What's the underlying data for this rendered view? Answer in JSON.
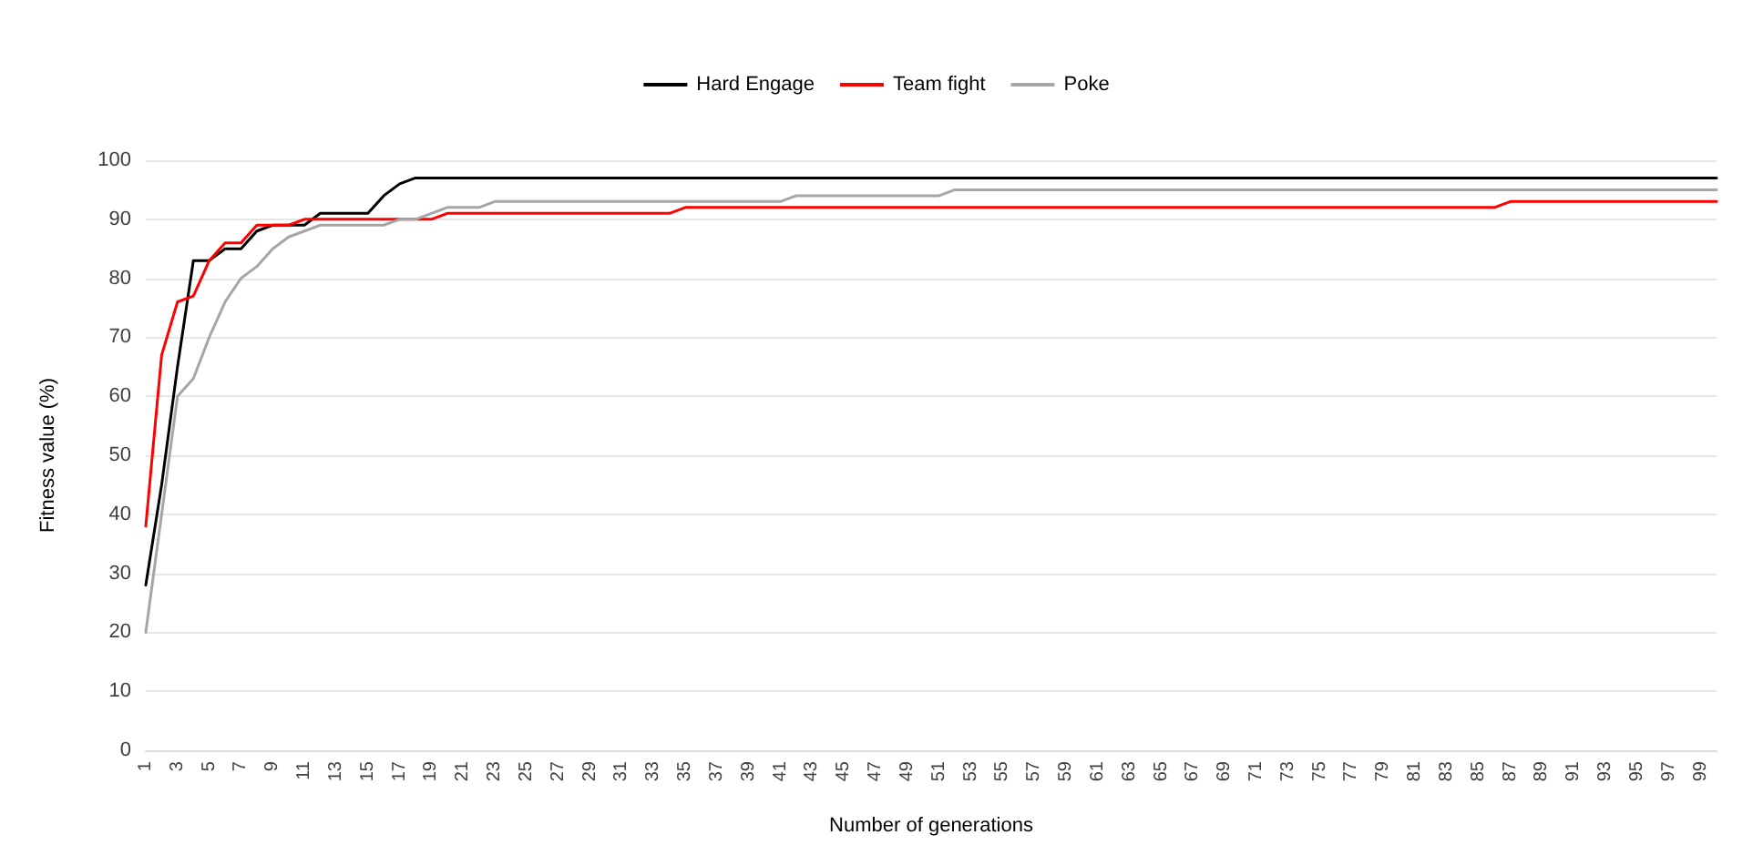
{
  "chart_data": {
    "type": "line",
    "xlabel": "Number of generations",
    "ylabel": "Fitness value (%)",
    "categories": [
      "1",
      null,
      "3",
      null,
      "5",
      null,
      "7",
      null,
      "9",
      null,
      "11",
      null,
      "13",
      null,
      "15",
      null,
      "17",
      null,
      "19",
      null,
      "21",
      null,
      "23",
      null,
      "25",
      null,
      "27",
      null,
      "29",
      null,
      "31",
      null,
      "33",
      null,
      "35",
      null,
      "37",
      null,
      "39",
      null,
      "41",
      null,
      "43",
      null,
      "45",
      null,
      "47",
      null,
      "49",
      null,
      "51",
      null,
      "53",
      null,
      "55",
      null,
      "57",
      null,
      "59",
      null,
      "61",
      null,
      "63",
      null,
      "65",
      null,
      "67",
      null,
      "69",
      null,
      "71",
      null,
      "73",
      null,
      "75",
      null,
      "77",
      null,
      "79",
      null,
      "81",
      null,
      "83",
      null,
      "85",
      null,
      "87",
      null,
      "89",
      null,
      "91",
      null,
      "93",
      null,
      "95",
      null,
      "97",
      null,
      "99",
      null
    ],
    "series": [
      {
        "name": "Hard Engage",
        "color": "#000000",
        "values": [
          28,
          45,
          65,
          83,
          83,
          85,
          85,
          88,
          89,
          89,
          89,
          91,
          91,
          91,
          91,
          94,
          96,
          97,
          97,
          97,
          97,
          97,
          97,
          97,
          97,
          97,
          97,
          97,
          97,
          97,
          97,
          97,
          97,
          97,
          97,
          97,
          97,
          97,
          97,
          97,
          97,
          97,
          97,
          97,
          97,
          97,
          97,
          97,
          97,
          97,
          97,
          97,
          97,
          97,
          97,
          97,
          97,
          97,
          97,
          97,
          97,
          97,
          97,
          97,
          97,
          97,
          97,
          97,
          97,
          97,
          97,
          97,
          97,
          97,
          97,
          97,
          97,
          97,
          97,
          97,
          97,
          97,
          97,
          97,
          97,
          97,
          97,
          97,
          97,
          97,
          97,
          97,
          97,
          97,
          97,
          97,
          97,
          97,
          97,
          97
        ]
      },
      {
        "name": "Team fight",
        "color": "#ff0000",
        "values": [
          38,
          67,
          76,
          77,
          83,
          86,
          86,
          89,
          89,
          89,
          90,
          90,
          90,
          90,
          90,
          90,
          90,
          90,
          90,
          91,
          91,
          91,
          91,
          91,
          91,
          91,
          91,
          91,
          91,
          91,
          91,
          91,
          91,
          91,
          92,
          92,
          92,
          92,
          92,
          92,
          92,
          92,
          92,
          92,
          92,
          92,
          92,
          92,
          92,
          92,
          92,
          92,
          92,
          92,
          92,
          92,
          92,
          92,
          92,
          92,
          92,
          92,
          92,
          92,
          92,
          92,
          92,
          92,
          92,
          92,
          92,
          92,
          92,
          92,
          92,
          92,
          92,
          92,
          92,
          92,
          92,
          92,
          92,
          92,
          92,
          92,
          93,
          93,
          93,
          93,
          93,
          93,
          93,
          93,
          93,
          93,
          93,
          93,
          93,
          93
        ]
      },
      {
        "name": "Poke",
        "color": "#a6a6a6",
        "values": [
          20,
          40,
          60,
          63,
          70,
          76,
          80,
          82,
          85,
          87,
          88,
          89,
          89,
          89,
          89,
          89,
          90,
          90,
          91,
          92,
          92,
          92,
          93,
          93,
          93,
          93,
          93,
          93,
          93,
          93,
          93,
          93,
          93,
          93,
          93,
          93,
          93,
          93,
          93,
          93,
          93,
          94,
          94,
          94,
          94,
          94,
          94,
          94,
          94,
          94,
          94,
          95,
          95,
          95,
          95,
          95,
          95,
          95,
          95,
          95,
          95,
          95,
          95,
          95,
          95,
          95,
          95,
          95,
          95,
          95,
          95,
          95,
          95,
          95,
          95,
          95,
          95,
          95,
          95,
          95,
          95,
          95,
          95,
          95,
          95,
          95,
          95,
          95,
          95,
          95,
          95,
          95,
          95,
          95,
          95,
          95,
          95,
          95,
          95,
          95
        ]
      }
    ],
    "ylim": [
      0,
      100
    ],
    "yticks": [
      0,
      10,
      20,
      30,
      40,
      50,
      60,
      70,
      80,
      90,
      100
    ],
    "grid": "y",
    "legend": "top",
    "marker": "none",
    "line_style": "solid"
  }
}
